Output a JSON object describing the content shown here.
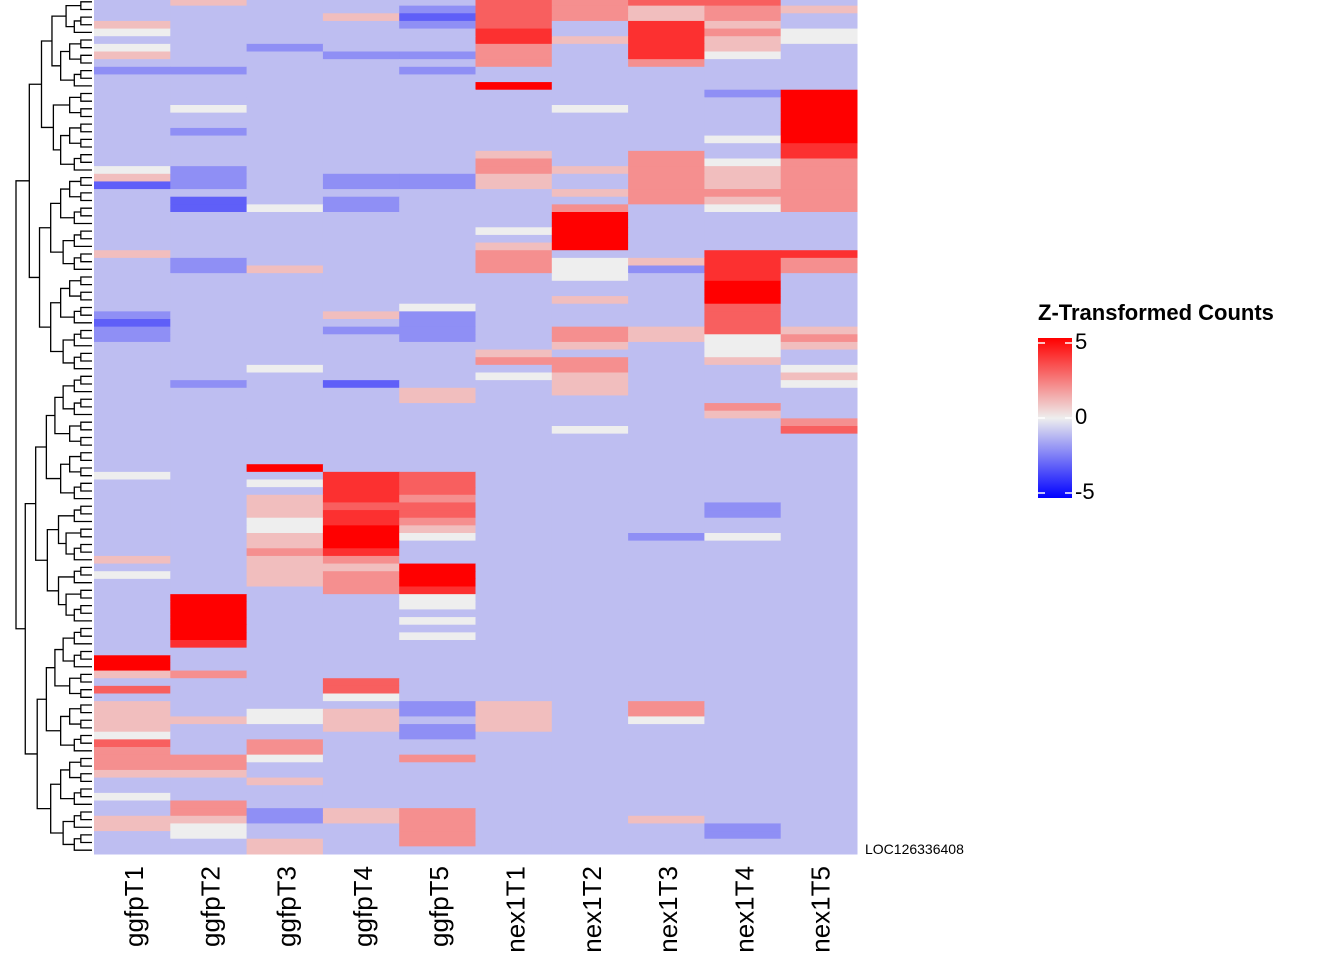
{
  "chart_data": {
    "type": "heatmap",
    "columns": [
      "ggfpT1",
      "ggfpT2",
      "ggfpT3",
      "ggfpT4",
      "ggfpT5",
      "nex1T1",
      "nex1T2",
      "nex1T3",
      "nex1T4",
      "nex1T5"
    ],
    "rows": [
      null,
      null,
      null,
      null,
      null,
      null,
      null,
      null,
      null,
      null,
      null,
      null,
      null,
      null,
      null,
      null,
      null,
      null,
      null,
      null,
      null,
      null,
      null,
      null,
      null,
      null,
      null,
      null,
      null,
      null,
      null,
      null,
      null,
      null,
      null,
      null,
      null,
      null,
      null,
      null,
      null,
      null,
      null,
      null,
      null,
      null,
      null,
      null,
      null,
      null,
      null,
      null,
      null,
      null,
      null,
      null,
      null,
      null,
      null,
      null,
      null,
      null,
      null,
      null,
      null,
      null,
      null,
      null,
      null,
      null,
      null,
      null,
      null,
      null,
      null,
      null,
      null,
      null,
      null,
      null,
      null,
      null,
      null,
      null,
      null,
      null,
      null,
      null,
      null,
      null,
      null,
      null,
      null,
      null,
      null,
      null,
      null,
      null,
      null,
      null,
      null,
      null,
      null,
      null,
      null,
      null,
      null,
      null,
      null,
      null,
      null,
      "LOC126336408"
    ],
    "values": [
      [
        -1,
        1,
        -1,
        -1,
        -1,
        3,
        2,
        3,
        3,
        -1
      ],
      [
        -1,
        -1,
        -1,
        -1,
        -2,
        3,
        2,
        1,
        2,
        1
      ],
      [
        -1,
        -1,
        -1,
        1,
        -3,
        3,
        2,
        1,
        2,
        -1
      ],
      [
        1,
        -1,
        -1,
        -1,
        -2,
        3,
        -1,
        4,
        1,
        -1
      ],
      [
        0,
        -1,
        -1,
        -1,
        -1,
        4,
        -1,
        4,
        2,
        0
      ],
      [
        -1,
        -1,
        -1,
        -1,
        -1,
        4,
        1,
        4,
        1,
        0
      ],
      [
        0,
        -1,
        -2,
        -1,
        -1,
        2,
        -1,
        4,
        1,
        -1
      ],
      [
        1,
        -1,
        -1,
        -2,
        -2,
        2,
        -1,
        4,
        0,
        -1
      ],
      [
        -1,
        -1,
        -1,
        -1,
        -1,
        2,
        -1,
        2,
        -1,
        -1
      ],
      [
        -2,
        -2,
        -1,
        -1,
        -2,
        -1,
        -1,
        -1,
        -1,
        -1
      ],
      [
        -1,
        -1,
        -1,
        -1,
        -1,
        -1,
        -1,
        -1,
        -1,
        -1
      ],
      [
        -1,
        -1,
        -1,
        -1,
        -1,
        5,
        -1,
        -1,
        -1,
        -1
      ],
      [
        -1,
        -1,
        -1,
        -1,
        -1,
        -1,
        -1,
        -1,
        -2,
        5
      ],
      [
        -1,
        -1,
        -1,
        -1,
        -1,
        -1,
        -1,
        -1,
        -1,
        5
      ],
      [
        -1,
        0,
        -1,
        -1,
        -1,
        -1,
        0,
        -1,
        -1,
        5
      ],
      [
        -1,
        -1,
        -1,
        -1,
        -1,
        -1,
        -1,
        -1,
        -1,
        5
      ],
      [
        -1,
        -1,
        -1,
        -1,
        -1,
        -1,
        -1,
        -1,
        -1,
        5
      ],
      [
        -1,
        -2,
        -1,
        -1,
        -1,
        -1,
        -1,
        -1,
        -1,
        5
      ],
      [
        -1,
        -1,
        -1,
        -1,
        -1,
        -1,
        -1,
        -1,
        0,
        5
      ],
      [
        -1,
        -1,
        -1,
        -1,
        -1,
        -1,
        -1,
        -1,
        -1,
        4
      ],
      [
        -1,
        -1,
        -1,
        -1,
        -1,
        1,
        -1,
        2,
        -1,
        4
      ],
      [
        -1,
        -1,
        -1,
        -1,
        -1,
        2,
        -1,
        2,
        0,
        2
      ],
      [
        0,
        -2,
        -1,
        -1,
        -1,
        2,
        1,
        2,
        1,
        2
      ],
      [
        1,
        -2,
        -1,
        -2,
        -2,
        1,
        -1,
        2,
        1,
        2
      ],
      [
        -3,
        -2,
        -1,
        -2,
        -2,
        1,
        -1,
        2,
        1,
        2
      ],
      [
        -1,
        -1,
        -1,
        -1,
        -1,
        -1,
        1,
        2,
        2,
        2
      ],
      [
        -1,
        -3,
        -1,
        -2,
        -1,
        -1,
        -1,
        2,
        1,
        2
      ],
      [
        -1,
        -3,
        0,
        -2,
        -1,
        -1,
        2,
        -1,
        0,
        2
      ],
      [
        -1,
        -1,
        -1,
        -1,
        -1,
        -1,
        5,
        -1,
        -1,
        -1
      ],
      [
        -1,
        -1,
        -1,
        -1,
        -1,
        -1,
        5,
        -1,
        -1,
        -1
      ],
      [
        -1,
        -1,
        -1,
        -1,
        -1,
        0,
        5,
        -1,
        -1,
        -1
      ],
      [
        -1,
        -1,
        -1,
        -1,
        -1,
        -1,
        5,
        -1,
        -1,
        -1
      ],
      [
        -1,
        -1,
        -1,
        -1,
        -1,
        1,
        5,
        -1,
        -1,
        -1
      ],
      [
        1,
        -1,
        -1,
        -1,
        -1,
        2,
        -1,
        -1,
        4,
        4
      ],
      [
        -1,
        -2,
        -1,
        -1,
        -1,
        2,
        0,
        1,
        4,
        2
      ],
      [
        -1,
        -2,
        1,
        -1,
        -1,
        2,
        0,
        -2,
        4,
        2
      ],
      [
        -1,
        -1,
        -1,
        -1,
        -1,
        -1,
        0,
        -1,
        4,
        -1
      ],
      [
        -1,
        -1,
        -1,
        -1,
        -1,
        -1,
        -1,
        -1,
        5,
        -1
      ],
      [
        -1,
        -1,
        -1,
        -1,
        -1,
        -1,
        -1,
        -1,
        5,
        -1
      ],
      [
        -1,
        -1,
        -1,
        -1,
        -1,
        -1,
        1,
        -1,
        5,
        -1
      ],
      [
        -1,
        -1,
        -1,
        -1,
        0,
        -1,
        -1,
        -1,
        3,
        -1
      ],
      [
        -2,
        -1,
        -1,
        1,
        -2,
        -1,
        -1,
        -1,
        3,
        -1
      ],
      [
        -3,
        -1,
        -1,
        -1,
        -2,
        -1,
        -1,
        -1,
        3,
        -1
      ],
      [
        -2,
        -1,
        -1,
        -2,
        -2,
        -1,
        2,
        1,
        3,
        1
      ],
      [
        -2,
        -1,
        -1,
        -1,
        -2,
        -1,
        2,
        1,
        0,
        2
      ],
      [
        -1,
        -1,
        -1,
        -1,
        -1,
        -1,
        1,
        -1,
        0,
        1
      ],
      [
        -1,
        -1,
        -1,
        -1,
        -1,
        1,
        -1,
        -1,
        0,
        -1
      ],
      [
        -1,
        -1,
        -1,
        -1,
        -1,
        2,
        2,
        -1,
        1,
        -1
      ],
      [
        -1,
        -1,
        0,
        -1,
        -1,
        -1,
        2,
        -1,
        -1,
        0
      ],
      [
        -1,
        -1,
        -1,
        -1,
        -1,
        0,
        1,
        -1,
        -1,
        1
      ],
      [
        -1,
        -2,
        -1,
        -3,
        -1,
        -1,
        1,
        -1,
        -1,
        0
      ],
      [
        -1,
        -1,
        -1,
        -1,
        1,
        -1,
        1,
        -1,
        -1,
        -1
      ],
      [
        -1,
        -1,
        -1,
        -1,
        1,
        -1,
        -1,
        -1,
        -1,
        -1
      ],
      [
        -1,
        -1,
        -1,
        -1,
        -1,
        -1,
        -1,
        -1,
        2,
        -1
      ],
      [
        -1,
        -1,
        -1,
        -1,
        -1,
        -1,
        -1,
        -1,
        1,
        -1
      ],
      [
        -1,
        -1,
        -1,
        -1,
        -1,
        -1,
        -1,
        -1,
        -1,
        2
      ],
      [
        -1,
        -1,
        -1,
        -1,
        -1,
        -1,
        0,
        -1,
        -1,
        3
      ],
      [
        -1,
        -1,
        -1,
        -1,
        -1,
        -1,
        -1,
        -1,
        -1,
        -1
      ],
      [
        -1,
        -1,
        -1,
        -1,
        -1,
        -1,
        -1,
        -1,
        -1,
        -1
      ],
      [
        -1,
        -1,
        -1,
        -1,
        -1,
        -1,
        -1,
        -1,
        -1,
        -1
      ],
      [
        -1,
        -1,
        -1,
        -1,
        -1,
        -1,
        -1,
        -1,
        -1,
        -1
      ],
      [
        -1,
        -1,
        5,
        -1,
        -1,
        -1,
        -1,
        -1,
        -1,
        -1
      ],
      [
        0,
        -1,
        -1,
        4,
        3,
        -1,
        -1,
        -1,
        -1,
        -1
      ],
      [
        -1,
        -1,
        0,
        4,
        3,
        -1,
        -1,
        -1,
        -1,
        -1
      ],
      [
        -1,
        -1,
        -1,
        4,
        3,
        -1,
        -1,
        -1,
        -1,
        -1
      ],
      [
        -1,
        -1,
        1,
        4,
        2,
        -1,
        -1,
        -1,
        -1,
        -1
      ],
      [
        -1,
        -1,
        1,
        3,
        3,
        -1,
        -1,
        -1,
        -2,
        -1
      ],
      [
        -1,
        -1,
        1,
        4,
        3,
        -1,
        -1,
        -1,
        -2,
        -1
      ],
      [
        -1,
        -1,
        0,
        4,
        2,
        -1,
        -1,
        -1,
        -1,
        -1
      ],
      [
        -1,
        -1,
        0,
        5,
        1,
        -1,
        -1,
        -1,
        -1,
        -1
      ],
      [
        -1,
        -1,
        1,
        5,
        0,
        -1,
        -1,
        -2,
        0,
        -1
      ],
      [
        -1,
        -1,
        1,
        5,
        -1,
        -1,
        -1,
        -1,
        -1,
        -1
      ],
      [
        -1,
        -1,
        2,
        4,
        -1,
        -1,
        -1,
        -1,
        -1,
        -1
      ],
      [
        1,
        -1,
        1,
        2,
        -1,
        -1,
        -1,
        -1,
        -1,
        -1
      ],
      [
        -1,
        -1,
        1,
        1,
        5,
        -1,
        -1,
        -1,
        -1,
        -1
      ],
      [
        0,
        -1,
        1,
        2,
        5,
        -1,
        -1,
        -1,
        -1,
        -1
      ],
      [
        -1,
        -1,
        1,
        2,
        5,
        -1,
        -1,
        -1,
        -1,
        -1
      ],
      [
        -1,
        -1,
        -1,
        2,
        4,
        -1,
        -1,
        -1,
        -1,
        -1
      ],
      [
        -1,
        5,
        -1,
        -1,
        0,
        -1,
        -1,
        -1,
        -1,
        -1
      ],
      [
        -1,
        5,
        -1,
        -1,
        0,
        -1,
        -1,
        -1,
        -1,
        -1
      ],
      [
        -1,
        5,
        -1,
        -1,
        -1,
        -1,
        -1,
        -1,
        -1,
        -1
      ],
      [
        -1,
        5,
        -1,
        -1,
        0,
        -1,
        -1,
        -1,
        -1,
        -1
      ],
      [
        -1,
        5,
        -1,
        -1,
        -1,
        -1,
        -1,
        -1,
        -1,
        -1
      ],
      [
        -1,
        5,
        -1,
        -1,
        0,
        -1,
        -1,
        -1,
        -1,
        -1
      ],
      [
        -1,
        4,
        -1,
        -1,
        -1,
        -1,
        -1,
        -1,
        -1,
        -1
      ],
      [
        -1,
        -1,
        -1,
        -1,
        -1,
        -1,
        -1,
        -1,
        -1,
        -1
      ],
      [
        5,
        -1,
        -1,
        -1,
        -1,
        -1,
        -1,
        -1,
        -1,
        -1
      ],
      [
        5,
        -1,
        -1,
        -1,
        -1,
        -1,
        -1,
        -1,
        -1,
        -1
      ],
      [
        1,
        2,
        -1,
        -1,
        -1,
        -1,
        -1,
        -1,
        -1,
        -1
      ],
      [
        -1,
        -1,
        -1,
        3,
        -1,
        -1,
        -1,
        -1,
        -1,
        -1
      ],
      [
        3,
        -1,
        -1,
        3,
        -1,
        -1,
        -1,
        -1,
        -1,
        -1
      ],
      [
        -1,
        -1,
        -1,
        0,
        -1,
        -1,
        -1,
        -1,
        -1,
        -1
      ],
      [
        1,
        -1,
        -1,
        -1,
        -2,
        1,
        -1,
        2,
        -1,
        -1
      ],
      [
        1,
        -1,
        0,
        1,
        -2,
        1,
        -1,
        2,
        -1,
        -1
      ],
      [
        1,
        1,
        0,
        1,
        -1,
        1,
        -1,
        0,
        -1,
        -1
      ],
      [
        1,
        -1,
        -1,
        1,
        -2,
        1,
        -1,
        -1,
        -1,
        -1
      ],
      [
        0,
        -1,
        -1,
        -1,
        -2,
        -1,
        -1,
        -1,
        -1,
        -1
      ],
      [
        3,
        -1,
        2,
        -1,
        -1,
        -1,
        -1,
        -1,
        -1,
        -1
      ],
      [
        2,
        -1,
        2,
        -1,
        -1,
        -1,
        -1,
        -1,
        -1,
        -1
      ],
      [
        2,
        2,
        0,
        -1,
        2,
        -1,
        -1,
        -1,
        -1,
        -1
      ],
      [
        2,
        2,
        -1,
        -1,
        -1,
        -1,
        -1,
        -1,
        -1,
        -1
      ],
      [
        1,
        1,
        -1,
        -1,
        -1,
        -1,
        -1,
        -1,
        -1,
        -1
      ],
      [
        -1,
        -1,
        1,
        -1,
        -1,
        -1,
        -1,
        -1,
        -1,
        -1
      ],
      [
        -1,
        -1,
        -1,
        -1,
        -1,
        -1,
        -1,
        -1,
        -1,
        -1
      ],
      [
        0,
        -1,
        -1,
        -1,
        -1,
        -1,
        -1,
        -1,
        -1,
        -1
      ],
      [
        -1,
        2,
        -1,
        -1,
        -1,
        -1,
        -1,
        -1,
        -1,
        -1
      ],
      [
        -1,
        2,
        -2,
        1,
        2,
        -1,
        -1,
        -1,
        -1,
        -1
      ],
      [
        1,
        1,
        -2,
        1,
        2,
        -1,
        -1,
        1,
        -1,
        -1
      ],
      [
        1,
        0,
        -1,
        -1,
        2,
        -1,
        -1,
        -1,
        -2,
        -1
      ],
      [
        -1,
        0,
        -1,
        -1,
        2,
        -1,
        -1,
        -1,
        -2,
        -1
      ],
      [
        -1,
        -1,
        1,
        -1,
        2,
        -1,
        -1,
        -1,
        -1,
        -1
      ],
      [
        -1,
        -1,
        1,
        -1,
        -1,
        -1,
        -1,
        -1,
        -1,
        -1
      ]
    ],
    "legend_title": "Z-Transformed Counts",
    "zlim": [
      -5,
      5
    ],
    "zticks": [
      5,
      0,
      -5
    ],
    "colors": {
      "low": "#0000ff",
      "mid": "#eeeeee",
      "high": "#ff0000"
    }
  }
}
